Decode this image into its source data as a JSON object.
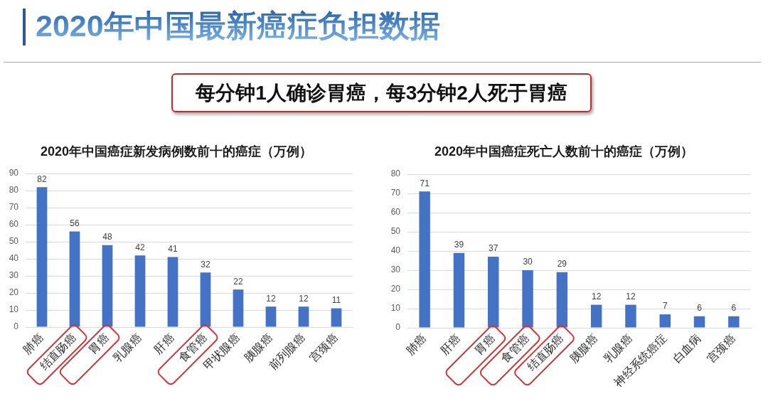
{
  "chart_data": [
    {
      "type": "other",
      "title": "2020年中国最新癌症负担数据",
      "annotations": [
        "每分钟1人确诊胃癌，每3分钟2人死于胃癌"
      ]
    },
    {
      "type": "bar",
      "title": "2020年中国癌症新发病例数前十的癌症（万例）",
      "categories": [
        "肺癌",
        "结直肠癌",
        "胃癌",
        "乳腺癌",
        "肝癌",
        "食管癌",
        "甲状腺癌",
        "胰腺癌",
        "前列腺癌",
        "宫颈癌"
      ],
      "values": [
        82,
        56,
        48,
        42,
        41,
        32,
        22,
        12,
        12,
        11
      ],
      "color": "#4472c4",
      "ylim": [
        0,
        90
      ],
      "yticks": [
        0,
        10,
        20,
        30,
        40,
        50,
        60,
        70,
        80,
        90
      ],
      "grid": "y",
      "data_labels": true
    },
    {
      "type": "bar",
      "title": "2020年中国癌症死亡人数前十的癌症（万例）",
      "categories": [
        "肺癌",
        "肝癌",
        "胃癌",
        "食管癌",
        "结直肠癌",
        "胰腺癌",
        "乳腺癌",
        "神经系统癌症",
        "白血病",
        "宫颈癌"
      ],
      "values": [
        71,
        39,
        37,
        30,
        29,
        12,
        12,
        7,
        6,
        6
      ],
      "color": "#4472c4",
      "ylim": [
        0,
        80
      ],
      "yticks": [
        0,
        10,
        20,
        30,
        40,
        50,
        60,
        70,
        80
      ],
      "grid": "y",
      "data_labels": true
    }
  ]
}
